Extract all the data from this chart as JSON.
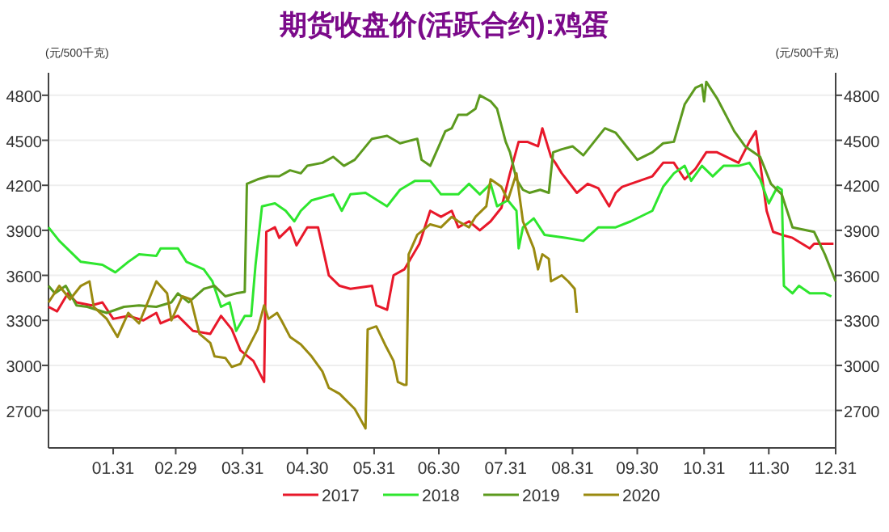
{
  "chart_data": {
    "type": "line",
    "title": "期货收盘价(活跃合约):鸡蛋",
    "ylabel": "(元/500千克)",
    "y2label": "(元/500千克)",
    "xlim": [
      "--01-01",
      "--12-31"
    ],
    "ylim": [
      2450,
      4950
    ],
    "y2lim": [
      2450,
      4950
    ],
    "xticks": [
      {
        "value": "--01-31",
        "label": "01.31"
      },
      {
        "value": "--02-29",
        "label": "02.29"
      },
      {
        "value": "--03-31",
        "label": "03.31"
      },
      {
        "value": "--04-30",
        "label": "04.30"
      },
      {
        "value": "--05-31",
        "label": "05.31"
      },
      {
        "value": "--06-30",
        "label": "06.30"
      },
      {
        "value": "--07-31",
        "label": "07.31"
      },
      {
        "value": "--08-31",
        "label": "08.31"
      },
      {
        "value": "--09-30",
        "label": "09.30"
      },
      {
        "value": "--10-31",
        "label": "10.31"
      },
      {
        "value": "--11-30",
        "label": "11.30"
      },
      {
        "value": "--12-31",
        "label": "12.31"
      }
    ],
    "yticks": [
      2700,
      3000,
      3300,
      3600,
      3900,
      4200,
      4500,
      4800
    ],
    "y2ticks": [
      2700,
      3000,
      3300,
      3600,
      3900,
      4200,
      4500,
      4800
    ],
    "grid": "y",
    "legend": "bottom",
    "marker": "none",
    "line_style": "solid",
    "series": [
      {
        "name": "2017",
        "color": "#e8182a",
        "x": [
          "--01-01",
          "--01-05",
          "--01-10",
          "--01-14",
          "--01-21",
          "--01-26",
          "--01-31",
          "--02-07",
          "--02-14",
          "--02-20",
          "--02-22",
          "--03-01",
          "--03-08",
          "--03-16",
          "--03-21",
          "--03-26",
          "--03-30",
          "--04-05",
          "--04-10",
          "--04-11",
          "--04-15",
          "--04-17",
          "--04-22",
          "--04-25",
          "--04-30",
          "--05-05",
          "--05-10",
          "--05-15",
          "--05-20",
          "--05-30",
          "--06-01",
          "--06-06",
          "--06-09",
          "--06-14",
          "--06-21",
          "--06-26",
          "--07-01",
          "--07-06",
          "--07-09",
          "--07-14",
          "--07-19",
          "--07-24",
          "--07-29",
          "--08-02",
          "--08-06",
          "--08-10",
          "--08-15",
          "--08-17",
          "--08-21",
          "--08-23",
          "--08-26",
          "--09-02",
          "--09-07",
          "--09-12",
          "--09-17",
          "--09-20",
          "--09-23",
          "--09-27",
          "--10-07",
          "--10-12",
          "--10-17",
          "--10-22",
          "--10-27",
          "--11-01",
          "--11-06",
          "--11-16",
          "--11-21",
          "--11-24",
          "--11-29",
          "--12-02",
          "--12-06",
          "--12-11",
          "--12-19",
          "--12-21",
          "--12-26",
          "--12-30"
        ],
        "values": [
          3390,
          3360,
          3480,
          3420,
          3400,
          3420,
          3310,
          3330,
          3300,
          3350,
          3280,
          3330,
          3230,
          3210,
          3330,
          3240,
          3100,
          3030,
          2890,
          3890,
          3920,
          3850,
          3920,
          3800,
          3920,
          3920,
          3600,
          3530,
          3510,
          3530,
          3400,
          3370,
          3600,
          3640,
          3810,
          4030,
          3990,
          4030,
          3920,
          3960,
          3900,
          3960,
          4050,
          4280,
          4490,
          4490,
          4460,
          4580,
          4390,
          4350,
          4280,
          4150,
          4210,
          4180,
          4060,
          4150,
          4190,
          4210,
          4260,
          4350,
          4350,
          4240,
          4310,
          4420,
          4420,
          4350,
          4490,
          4560,
          4030,
          3890,
          3870,
          3850,
          3780,
          3810,
          3810,
          3810
        ]
      },
      {
        "name": "2018",
        "color": "#2ee62e",
        "x": [
          "--01-01",
          "--01-06",
          "--01-16",
          "--01-26",
          "--02-01",
          "--02-07",
          "--02-12",
          "--02-20",
          "--02-22",
          "--03-01",
          "--03-05",
          "--03-13",
          "--03-17",
          "--03-21",
          "--03-25",
          "--03-28",
          "--04-01",
          "--04-04",
          "--04-06",
          "--04-09",
          "--04-15",
          "--04-20",
          "--04-24",
          "--04-27",
          "--05-02",
          "--05-12",
          "--05-16",
          "--05-20",
          "--05-27",
          "--06-06",
          "--06-12",
          "--06-19",
          "--06-26",
          "--07-01",
          "--07-06",
          "--07-09",
          "--07-14",
          "--07-19",
          "--07-24",
          "--07-27",
          "--08-01",
          "--08-05",
          "--08-06",
          "--08-08",
          "--08-13",
          "--08-18",
          "--08-28",
          "--09-05",
          "--09-12",
          "--09-20",
          "--09-27",
          "--10-07",
          "--10-12",
          "--10-17",
          "--10-22",
          "--10-25",
          "--10-30",
          "--11-04",
          "--11-09",
          "--11-16",
          "--11-21",
          "--11-26",
          "--11-30",
          "--12-04",
          "--12-06",
          "--12-07",
          "--12-11",
          "--12-14",
          "--12-19",
          "--12-26",
          "--12-29"
        ],
        "values": [
          3920,
          3830,
          3690,
          3670,
          3620,
          3690,
          3740,
          3730,
          3780,
          3780,
          3690,
          3640,
          3560,
          3390,
          3420,
          3230,
          3330,
          3330,
          3670,
          4060,
          4080,
          4030,
          3960,
          4030,
          4100,
          4140,
          4030,
          4140,
          4150,
          4060,
          4170,
          4230,
          4230,
          4140,
          4140,
          4140,
          4210,
          4140,
          4210,
          4060,
          4100,
          4030,
          3780,
          3920,
          3980,
          3870,
          3850,
          3830,
          3920,
          3920,
          3960,
          4030,
          4190,
          4280,
          4330,
          4230,
          4330,
          4260,
          4330,
          4330,
          4350,
          4240,
          4080,
          4190,
          4170,
          3530,
          3480,
          3530,
          3480,
          3480,
          3460
        ]
      },
      {
        "name": "2019",
        "color": "#5c9a1e",
        "x": [
          "--01-01",
          "--01-04",
          "--01-09",
          "--01-14",
          "--01-19",
          "--01-28",
          "--02-05",
          "--02-12",
          "--02-20",
          "--02-27",
          "--03-01",
          "--03-06",
          "--03-13",
          "--03-18",
          "--03-23",
          "--03-28",
          "--04-01",
          "--04-02",
          "--04-07",
          "--04-12",
          "--04-17",
          "--04-22",
          "--04-27",
          "--04-30",
          "--05-07",
          "--05-12",
          "--05-17",
          "--05-22",
          "--05-30",
          "--06-06",
          "--06-12",
          "--06-20",
          "--06-22",
          "--06-26",
          "--06-30",
          "--07-03",
          "--07-06",
          "--07-09",
          "--07-13",
          "--07-17",
          "--07-19",
          "--07-24",
          "--07-27",
          "--07-31",
          "--08-02",
          "--08-05",
          "--08-08",
          "--08-11",
          "--08-16",
          "--08-20",
          "--08-22",
          "--08-26",
          "--08-31",
          "--09-05",
          "--09-10",
          "--09-15",
          "--09-20",
          "--09-25",
          "--09-30",
          "--10-07",
          "--10-12",
          "--10-17",
          "--10-22",
          "--10-27",
          "--10-30",
          "--10-31",
          "--11-01",
          "--11-06",
          "--11-14",
          "--11-19",
          "--11-26",
          "--12-01",
          "--12-06",
          "--12-11",
          "--12-21",
          "--12-26",
          "--12-31"
        ],
        "values": [
          3530,
          3480,
          3530,
          3400,
          3390,
          3350,
          3390,
          3400,
          3390,
          3420,
          3480,
          3420,
          3510,
          3530,
          3460,
          3480,
          3490,
          4210,
          4240,
          4260,
          4260,
          4300,
          4280,
          4330,
          4350,
          4390,
          4330,
          4370,
          4510,
          4530,
          4480,
          4510,
          4370,
          4330,
          4460,
          4560,
          4580,
          4670,
          4670,
          4710,
          4800,
          4760,
          4710,
          4490,
          4420,
          4240,
          4170,
          4150,
          4170,
          4150,
          4420,
          4440,
          4460,
          4400,
          4490,
          4580,
          4550,
          4460,
          4370,
          4420,
          4480,
          4490,
          4740,
          4850,
          4870,
          4760,
          4890,
          4780,
          4560,
          4460,
          4390,
          4210,
          4140,
          3920,
          3890,
          3740,
          3560
        ]
      },
      {
        "name": "2020",
        "color": "#9a8a10",
        "x": [
          "--01-01",
          "--01-06",
          "--01-11",
          "--01-16",
          "--01-20",
          "--01-22",
          "--01-28",
          "--02-02",
          "--02-07",
          "--02-12",
          "--02-20",
          "--02-25",
          "--02-27",
          "--03-03",
          "--03-07",
          "--03-11",
          "--03-16",
          "--03-18",
          "--03-23",
          "--03-26",
          "--03-30",
          "--04-02",
          "--04-07",
          "--04-10",
          "--04-12",
          "--04-16",
          "--04-18",
          "--04-22",
          "--04-27",
          "--05-02",
          "--05-07",
          "--05-10",
          "--05-15",
          "--05-22",
          "--05-27",
          "--05-28",
          "--06-01",
          "--06-05",
          "--06-09",
          "--06-11",
          "--06-14",
          "--06-15",
          "--06-16",
          "--06-20",
          "--06-26",
          "--07-01",
          "--07-06",
          "--07-09",
          "--07-14",
          "--07-17",
          "--07-22",
          "--07-24",
          "--07-27",
          "--07-29",
          "--08-01",
          "--08-05",
          "--08-08",
          "--08-13",
          "--08-15",
          "--08-17",
          "--08-20",
          "--08-21",
          "--08-26",
          "--08-29",
          "--09-01",
          "--09-02"
        ],
        "values": [
          3420,
          3530,
          3440,
          3530,
          3560,
          3390,
          3310,
          3190,
          3350,
          3280,
          3560,
          3480,
          3300,
          3460,
          3440,
          3210,
          3150,
          3060,
          3050,
          2990,
          3010,
          3100,
          3240,
          3400,
          3310,
          3350,
          3300,
          3190,
          3140,
          3060,
          2960,
          2850,
          2810,
          2710,
          2580,
          3240,
          3260,
          3140,
          3030,
          2890,
          2870,
          2870,
          3740,
          3870,
          3940,
          3920,
          3990,
          3960,
          3920,
          3990,
          4060,
          4240,
          4210,
          4190,
          4100,
          4280,
          3960,
          3780,
          3640,
          3740,
          3710,
          3560,
          3600,
          3560,
          3510,
          3350
        ]
      }
    ]
  }
}
